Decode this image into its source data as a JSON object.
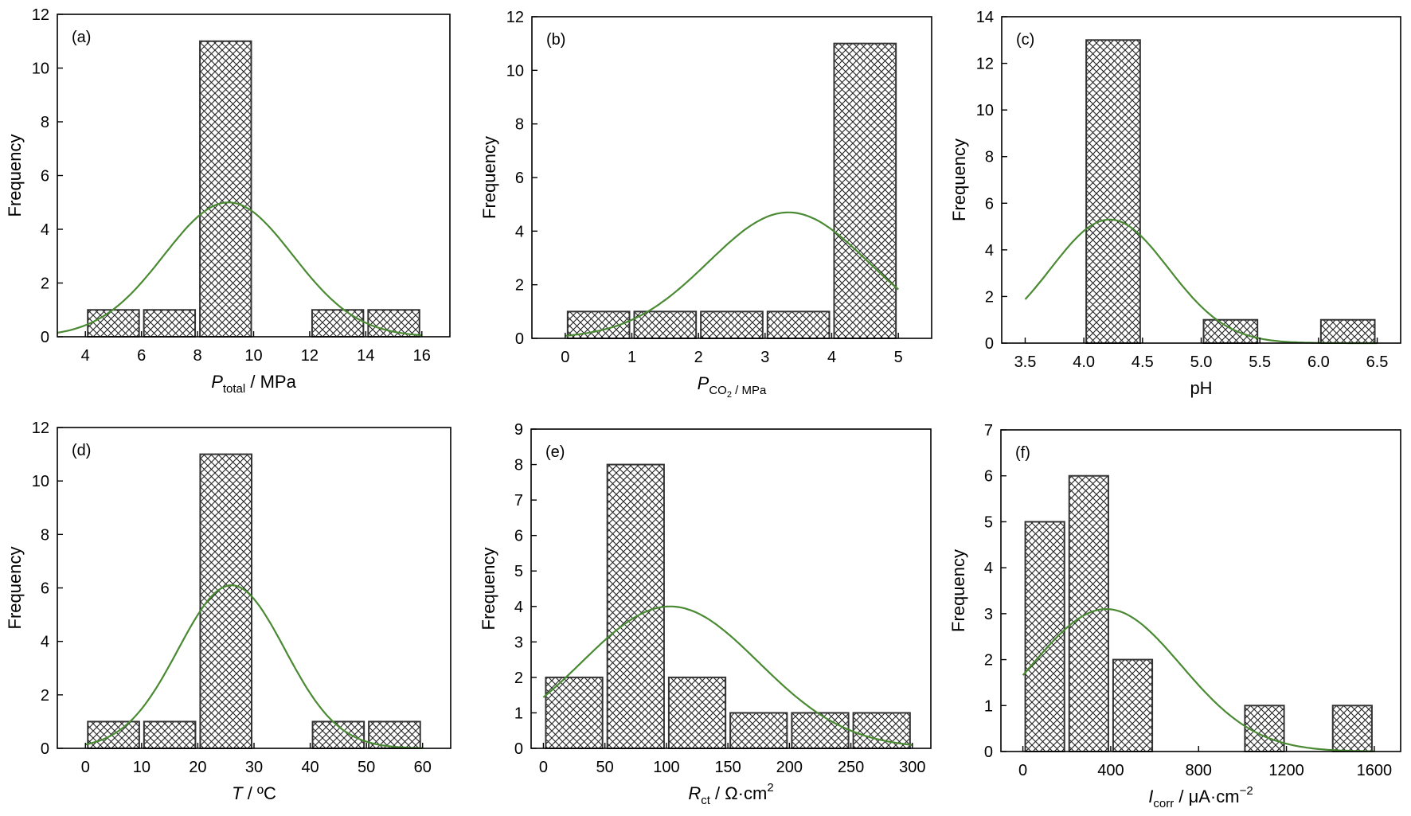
{
  "colors": {
    "axis": "#000000",
    "bar_edge": "#333333",
    "hatch": "#222222",
    "fit_curve": "#4a8a33",
    "background": "#ffffff"
  },
  "chart_data": [
    {
      "type": "bar",
      "panel": "(a)",
      "xlabel": "P",
      "xlabel_sub": "total",
      "xlabel_rest": " / MPa",
      "ylabel": "Frequency",
      "xlim": [
        3,
        17
      ],
      "ylim": [
        0,
        12
      ],
      "xticks": [
        4,
        6,
        8,
        10,
        12,
        14,
        16
      ],
      "yticks": [
        0,
        2,
        4,
        6,
        8,
        10,
        12
      ],
      "bins": [
        [
          4,
          6
        ],
        [
          6,
          8
        ],
        [
          8,
          10
        ],
        [
          10,
          12
        ],
        [
          12,
          14
        ],
        [
          14,
          16
        ]
      ],
      "values": [
        1,
        1,
        11,
        0,
        1,
        1
      ],
      "fit": {
        "type": "normal",
        "peak": 5.0,
        "mean": 9.1,
        "sd": 2.3,
        "range": [
          3,
          16
        ]
      }
    },
    {
      "type": "bar",
      "panel": "(b)",
      "xlabel": "P",
      "xlabel_sub": "CO",
      "xlabel_sub2": "2",
      "xlabel_rest": " / MPa",
      "ylabel": "Frequency",
      "xlim": [
        -0.5,
        5.5
      ],
      "ylim": [
        0,
        12
      ],
      "xticks": [
        0,
        1,
        2,
        3,
        4,
        5
      ],
      "yticks": [
        0,
        2,
        4,
        6,
        8,
        10,
        12
      ],
      "bins": [
        [
          0,
          1
        ],
        [
          1,
          2
        ],
        [
          2,
          3
        ],
        [
          3,
          4
        ],
        [
          4,
          5
        ]
      ],
      "values": [
        1,
        1,
        1,
        1,
        11
      ],
      "fit": {
        "type": "normal",
        "peak": 4.7,
        "mean": 3.35,
        "sd": 1.2,
        "range": [
          0,
          5
        ]
      }
    },
    {
      "type": "bar",
      "panel": "(c)",
      "xlabel": "pH",
      "ylabel": "Frequency",
      "xlim": [
        3.3,
        6.7
      ],
      "ylim": [
        0,
        14
      ],
      "xticks": [
        "3.5",
        "4.0",
        "4.5",
        "5.0",
        "5.5",
        "6.0",
        "6.5"
      ],
      "yticks": [
        0,
        2,
        4,
        6,
        8,
        10,
        12,
        14
      ],
      "bins": [
        [
          4.0,
          4.5
        ],
        [
          4.5,
          5.0
        ],
        [
          5.0,
          5.5
        ],
        [
          5.5,
          6.0
        ],
        [
          6.0,
          6.5
        ]
      ],
      "values": [
        13,
        0,
        1,
        0,
        1
      ],
      "fit": {
        "type": "normal",
        "peak": 5.3,
        "mean": 4.22,
        "sd": 0.5,
        "range": [
          3.5,
          6.5
        ]
      }
    },
    {
      "type": "bar",
      "panel": "(d)",
      "xlabel": "T",
      "xlabel_rest": " / ºC",
      "ylabel": "Frequency",
      "xlim": [
        -5,
        65
      ],
      "ylim": [
        0,
        12
      ],
      "xticks": [
        0,
        10,
        20,
        30,
        40,
        50,
        60
      ],
      "yticks": [
        0,
        2,
        4,
        6,
        8,
        10,
        12
      ],
      "bins": [
        [
          0,
          10
        ],
        [
          10,
          20
        ],
        [
          20,
          30
        ],
        [
          30,
          40
        ],
        [
          40,
          50
        ],
        [
          50,
          60
        ]
      ],
      "values": [
        1,
        1,
        11,
        0,
        1,
        1
      ],
      "fit": {
        "type": "normal",
        "peak": 6.1,
        "mean": 26,
        "sd": 9.5,
        "range": [
          0,
          60
        ]
      }
    },
    {
      "type": "bar",
      "panel": "(e)",
      "xlabel": "R",
      "xlabel_sub": "ct",
      "xlabel_rest": " / Ω·cm",
      "xlabel_sup": "2",
      "ylabel": "Frequency",
      "xlim": [
        -10,
        315
      ],
      "ylim": [
        0,
        9
      ],
      "xticks": [
        0,
        50,
        100,
        150,
        200,
        250,
        300
      ],
      "yticks": [
        0,
        1,
        2,
        3,
        4,
        5,
        6,
        7,
        8,
        9
      ],
      "bins": [
        [
          0,
          50
        ],
        [
          50,
          100
        ],
        [
          100,
          150
        ],
        [
          150,
          200
        ],
        [
          200,
          250
        ],
        [
          250,
          300
        ]
      ],
      "values": [
        2,
        8,
        2,
        1,
        1,
        1
      ],
      "fit": {
        "type": "normal",
        "peak": 4.0,
        "mean": 103,
        "sd": 72,
        "range": [
          0,
          300
        ]
      }
    },
    {
      "type": "bar",
      "panel": "(f)",
      "xlabel": "I",
      "xlabel_sub": "corr",
      "xlabel_rest": " / μA·cm",
      "xlabel_sup": "−2",
      "ylabel": "Frequency",
      "xlim": [
        -100,
        1720
      ],
      "ylim": [
        0,
        7
      ],
      "xticks": [
        0,
        400,
        800,
        1200,
        1600
      ],
      "yticks": [
        0,
        1,
        2,
        3,
        4,
        5,
        6,
        7
      ],
      "bins": [
        [
          0,
          200
        ],
        [
          200,
          400
        ],
        [
          400,
          600
        ],
        [
          600,
          800
        ],
        [
          800,
          1000
        ],
        [
          1000,
          1200
        ],
        [
          1200,
          1400
        ],
        [
          1400,
          1600
        ]
      ],
      "values": [
        5,
        6,
        2,
        0,
        0,
        1,
        0,
        1
      ],
      "fit": {
        "type": "normal",
        "peak": 3.1,
        "mean": 380,
        "sd": 340,
        "range": [
          0,
          1600
        ]
      }
    }
  ]
}
